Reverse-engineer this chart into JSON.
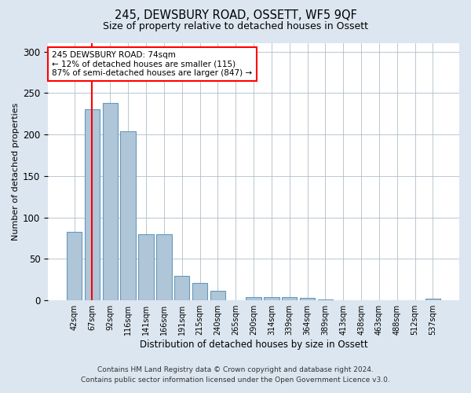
{
  "title": "245, DEWSBURY ROAD, OSSETT, WF5 9QF",
  "subtitle": "Size of property relative to detached houses in Ossett",
  "xlabel": "Distribution of detached houses by size in Ossett",
  "ylabel": "Number of detached properties",
  "bar_labels": [
    "42sqm",
    "67sqm",
    "92sqm",
    "116sqm",
    "141sqm",
    "166sqm",
    "191sqm",
    "215sqm",
    "240sqm",
    "265sqm",
    "290sqm",
    "314sqm",
    "339sqm",
    "364sqm",
    "389sqm",
    "413sqm",
    "438sqm",
    "463sqm",
    "488sqm",
    "512sqm",
    "537sqm"
  ],
  "bar_values": [
    83,
    230,
    238,
    204,
    80,
    80,
    30,
    21,
    12,
    0,
    4,
    4,
    4,
    3,
    1,
    0,
    0,
    0,
    0,
    0,
    2
  ],
  "bar_color": "#aec6d8",
  "bar_edge_color": "#6699bb",
  "ylim": [
    0,
    310
  ],
  "yticks": [
    0,
    50,
    100,
    150,
    200,
    250,
    300
  ],
  "red_line_index": 1,
  "annotation_text": "245 DEWSBURY ROAD: 74sqm\n← 12% of detached houses are smaller (115)\n87% of semi-detached houses are larger (847) →",
  "annotation_box_color": "white",
  "annotation_box_edge": "red",
  "footer_line1": "Contains HM Land Registry data © Crown copyright and database right 2024.",
  "footer_line2": "Contains public sector information licensed under the Open Government Licence v3.0.",
  "background_color": "#dce6f0",
  "plot_bg_color": "white",
  "grid_color": "#b0bec8"
}
